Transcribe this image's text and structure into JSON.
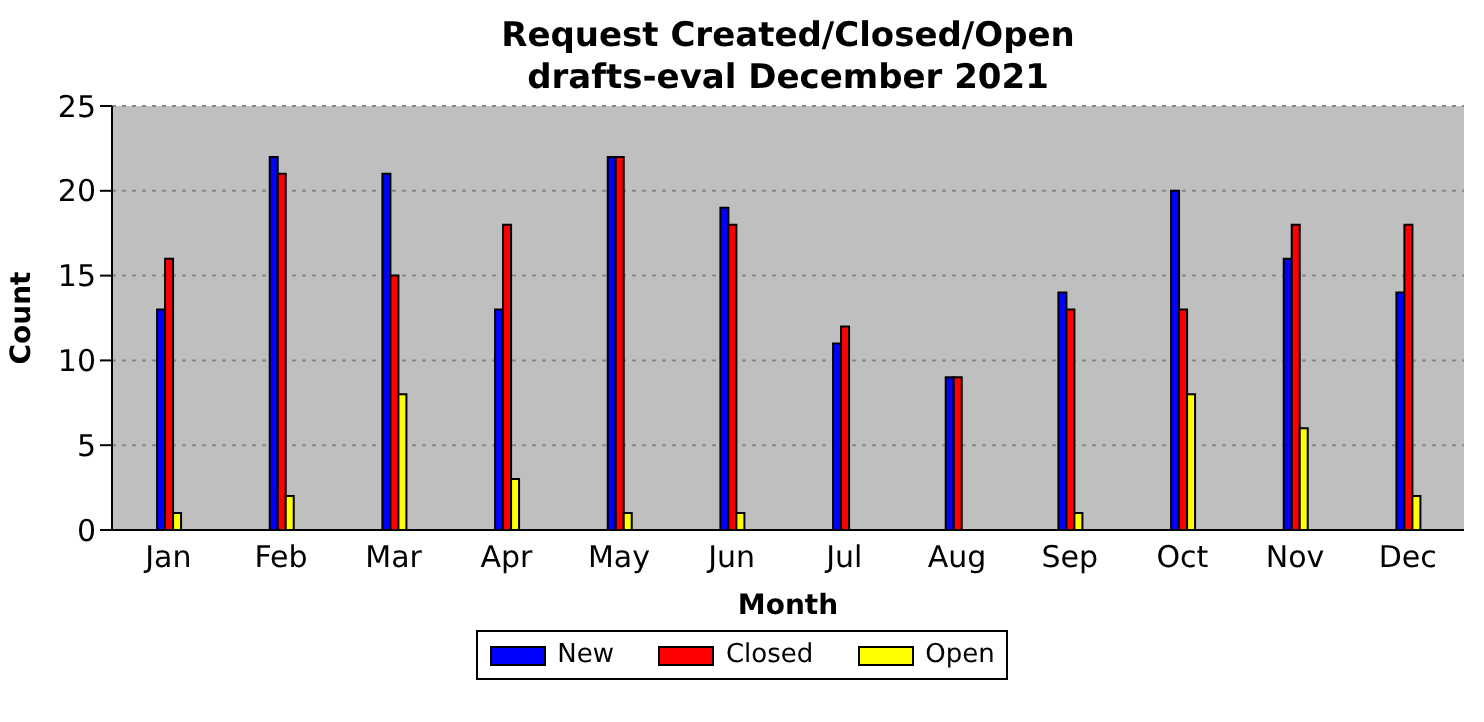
{
  "chart_data": {
    "type": "bar",
    "title": "Request Created/Closed/Open",
    "subtitle": "drafts-eval December 2021",
    "xlabel": "Month",
    "ylabel": "Count",
    "categories": [
      "Jan",
      "Feb",
      "Mar",
      "Apr",
      "May",
      "Jun",
      "Jul",
      "Aug",
      "Sep",
      "Oct",
      "Nov",
      "Dec"
    ],
    "series": [
      {
        "name": "New",
        "color": "#0000ff",
        "values": [
          13,
          22,
          21,
          13,
          22,
          19,
          11,
          9,
          14,
          20,
          16,
          14
        ]
      },
      {
        "name": "Closed",
        "color": "#ff0000",
        "values": [
          16,
          21,
          15,
          18,
          22,
          18,
          12,
          9,
          13,
          13,
          18,
          18
        ]
      },
      {
        "name": "Open",
        "color": "#ffff00",
        "values": [
          1,
          2,
          8,
          3,
          1,
          1,
          0,
          0,
          1,
          8,
          6,
          2
        ]
      }
    ],
    "ylim": [
      0,
      25
    ],
    "yticks": [
      0,
      5,
      10,
      15,
      20,
      25
    ],
    "grid": "y",
    "legend": "bottom"
  }
}
